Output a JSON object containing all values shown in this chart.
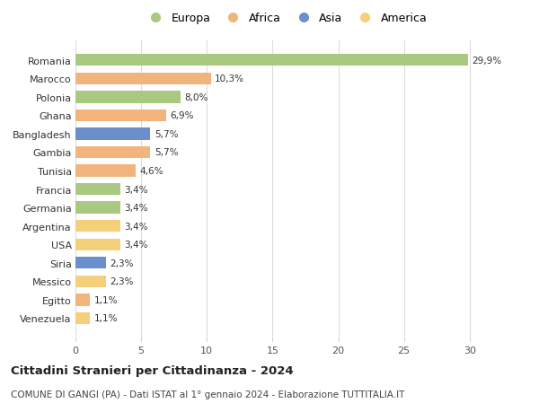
{
  "countries": [
    "Romania",
    "Marocco",
    "Polonia",
    "Ghana",
    "Bangladesh",
    "Gambia",
    "Tunisia",
    "Francia",
    "Germania",
    "Argentina",
    "USA",
    "Siria",
    "Messico",
    "Egitto",
    "Venezuela"
  ],
  "values": [
    29.9,
    10.3,
    8.0,
    6.9,
    5.7,
    5.7,
    4.6,
    3.4,
    3.4,
    3.4,
    3.4,
    2.3,
    2.3,
    1.1,
    1.1
  ],
  "labels": [
    "29,9%",
    "10,3%",
    "8,0%",
    "6,9%",
    "5,7%",
    "5,7%",
    "4,6%",
    "3,4%",
    "3,4%",
    "3,4%",
    "3,4%",
    "2,3%",
    "2,3%",
    "1,1%",
    "1,1%"
  ],
  "continents": [
    "Europa",
    "Africa",
    "Europa",
    "Africa",
    "Asia",
    "Africa",
    "Africa",
    "Europa",
    "Europa",
    "America",
    "America",
    "Asia",
    "America",
    "Africa",
    "America"
  ],
  "colors": {
    "Europa": "#a8c97f",
    "Africa": "#f0b47c",
    "Asia": "#6b8fcc",
    "America": "#f5d07a"
  },
  "legend_order": [
    "Europa",
    "Africa",
    "Asia",
    "America"
  ],
  "title": "Cittadini Stranieri per Cittadinanza - 2024",
  "subtitle": "COMUNE DI GANGI (PA) - Dati ISTAT al 1° gennaio 2024 - Elaborazione TUTTITALIA.IT",
  "xlim": [
    0,
    32
  ],
  "xticks": [
    0,
    5,
    10,
    15,
    20,
    25,
    30
  ],
  "bg_color": "#ffffff",
  "grid_color": "#dddddd",
  "bar_height": 0.65
}
